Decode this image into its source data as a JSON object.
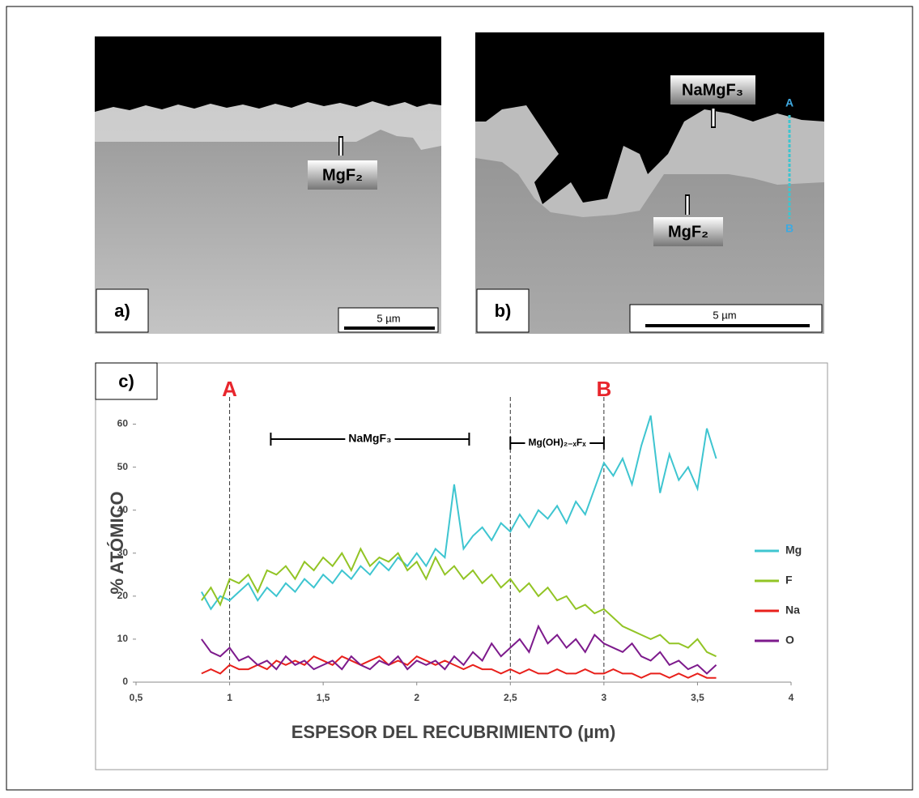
{
  "panels": {
    "a": {
      "label": "a)",
      "annotations": [
        "MgF₂"
      ],
      "scale_bar": "5 µm"
    },
    "b": {
      "label": "b)",
      "annotations": [
        "NaMgF₃",
        "MgF₂"
      ],
      "line_ends": [
        "A",
        "B"
      ],
      "scale_bar": "5 µm"
    }
  },
  "chart_data": {
    "type": "line",
    "panel_label": "c)",
    "x_label": "ESPESOR DEL RECUBRIMIENTO (µm)",
    "y_label": "% ATÓMICO",
    "xlim": [
      0.5,
      4
    ],
    "ylim": [
      0,
      65
    ],
    "xticks": [
      {
        "value": 0.5,
        "label": "0,5"
      },
      1,
      {
        "value": 1.5,
        "label": "1,5"
      },
      2,
      {
        "value": 2.5,
        "label": "2,5"
      },
      3,
      {
        "value": 3.5,
        "label": "3,5"
      },
      4
    ],
    "yticks": [
      0,
      10,
      20,
      30,
      40,
      50,
      60
    ],
    "legend": "right",
    "markers": [
      {
        "label": "A",
        "x": 1,
        "color": "#e8262d"
      },
      {
        "label": "B",
        "x": 3,
        "color": "#e8262d"
      }
    ],
    "vlines": [
      1,
      2.5,
      3
    ],
    "ranges": [
      {
        "label": "NaMgF₃",
        "from": 1.22,
        "to": 2.28
      },
      {
        "label": "Mg(OH)₂₋ₓFₓ",
        "from": 2.5,
        "to": 3
      }
    ],
    "x": [
      0.85,
      0.9,
      0.95,
      1,
      1.05,
      1.1,
      1.15,
      1.2,
      1.25,
      1.3,
      1.35,
      1.4,
      1.45,
      1.5,
      1.55,
      1.6,
      1.65,
      1.7,
      1.75,
      1.8,
      1.85,
      1.9,
      1.95,
      2,
      2.05,
      2.1,
      2.15,
      2.2,
      2.25,
      2.3,
      2.35,
      2.4,
      2.45,
      2.5,
      2.55,
      2.6,
      2.65,
      2.7,
      2.75,
      2.8,
      2.85,
      2.9,
      2.95,
      3,
      3.05,
      3.1,
      3.15,
      3.2,
      3.25,
      3.3,
      3.35,
      3.4,
      3.45,
      3.5,
      3.55,
      3.6
    ],
    "series": [
      {
        "name": "Mg",
        "color": "#3ec5d0",
        "values": [
          21,
          17,
          20,
          19,
          21,
          23,
          19,
          22,
          20,
          23,
          21,
          24,
          22,
          25,
          23,
          26,
          24,
          27,
          25,
          28,
          26,
          29,
          27,
          30,
          27,
          31,
          29,
          46,
          31,
          34,
          36,
          33,
          37,
          35,
          39,
          36,
          40,
          38,
          41,
          37,
          42,
          39,
          45,
          51,
          48,
          52,
          46,
          55,
          62,
          44,
          53,
          47,
          50,
          45,
          59,
          52
        ]
      },
      {
        "name": "F",
        "color": "#92c425",
        "values": [
          19,
          22,
          18,
          24,
          23,
          25,
          21,
          26,
          25,
          27,
          24,
          28,
          26,
          29,
          27,
          30,
          26,
          31,
          27,
          29,
          28,
          30,
          26,
          28,
          24,
          29,
          25,
          27,
          24,
          26,
          23,
          25,
          22,
          24,
          21,
          23,
          20,
          22,
          19,
          20,
          17,
          18,
          16,
          17,
          15,
          13,
          12,
          11,
          10,
          11,
          9,
          9,
          8,
          10,
          7,
          6
        ]
      },
      {
        "name": "Na",
        "color": "#e8201b",
        "values": [
          2,
          3,
          2,
          4,
          3,
          3,
          4,
          3,
          5,
          4,
          5,
          4,
          6,
          5,
          4,
          6,
          5,
          4,
          5,
          6,
          4,
          5,
          4,
          6,
          5,
          4,
          5,
          4,
          3,
          4,
          3,
          3,
          2,
          3,
          2,
          3,
          2,
          2,
          3,
          2,
          2,
          3,
          2,
          2,
          3,
          2,
          2,
          1,
          2,
          2,
          1,
          2,
          1,
          2,
          1,
          1
        ]
      },
      {
        "name": "O",
        "color": "#7d1a8c",
        "values": [
          10,
          7,
          6,
          8,
          5,
          6,
          4,
          5,
          3,
          6,
          4,
          5,
          3,
          4,
          5,
          3,
          6,
          4,
          3,
          5,
          4,
          6,
          3,
          5,
          4,
          5,
          3,
          6,
          4,
          7,
          5,
          9,
          6,
          8,
          10,
          7,
          13,
          9,
          11,
          8,
          10,
          7,
          11,
          9,
          8,
          7,
          9,
          6,
          5,
          7,
          4,
          5,
          3,
          4,
          2,
          4
        ]
      }
    ]
  }
}
